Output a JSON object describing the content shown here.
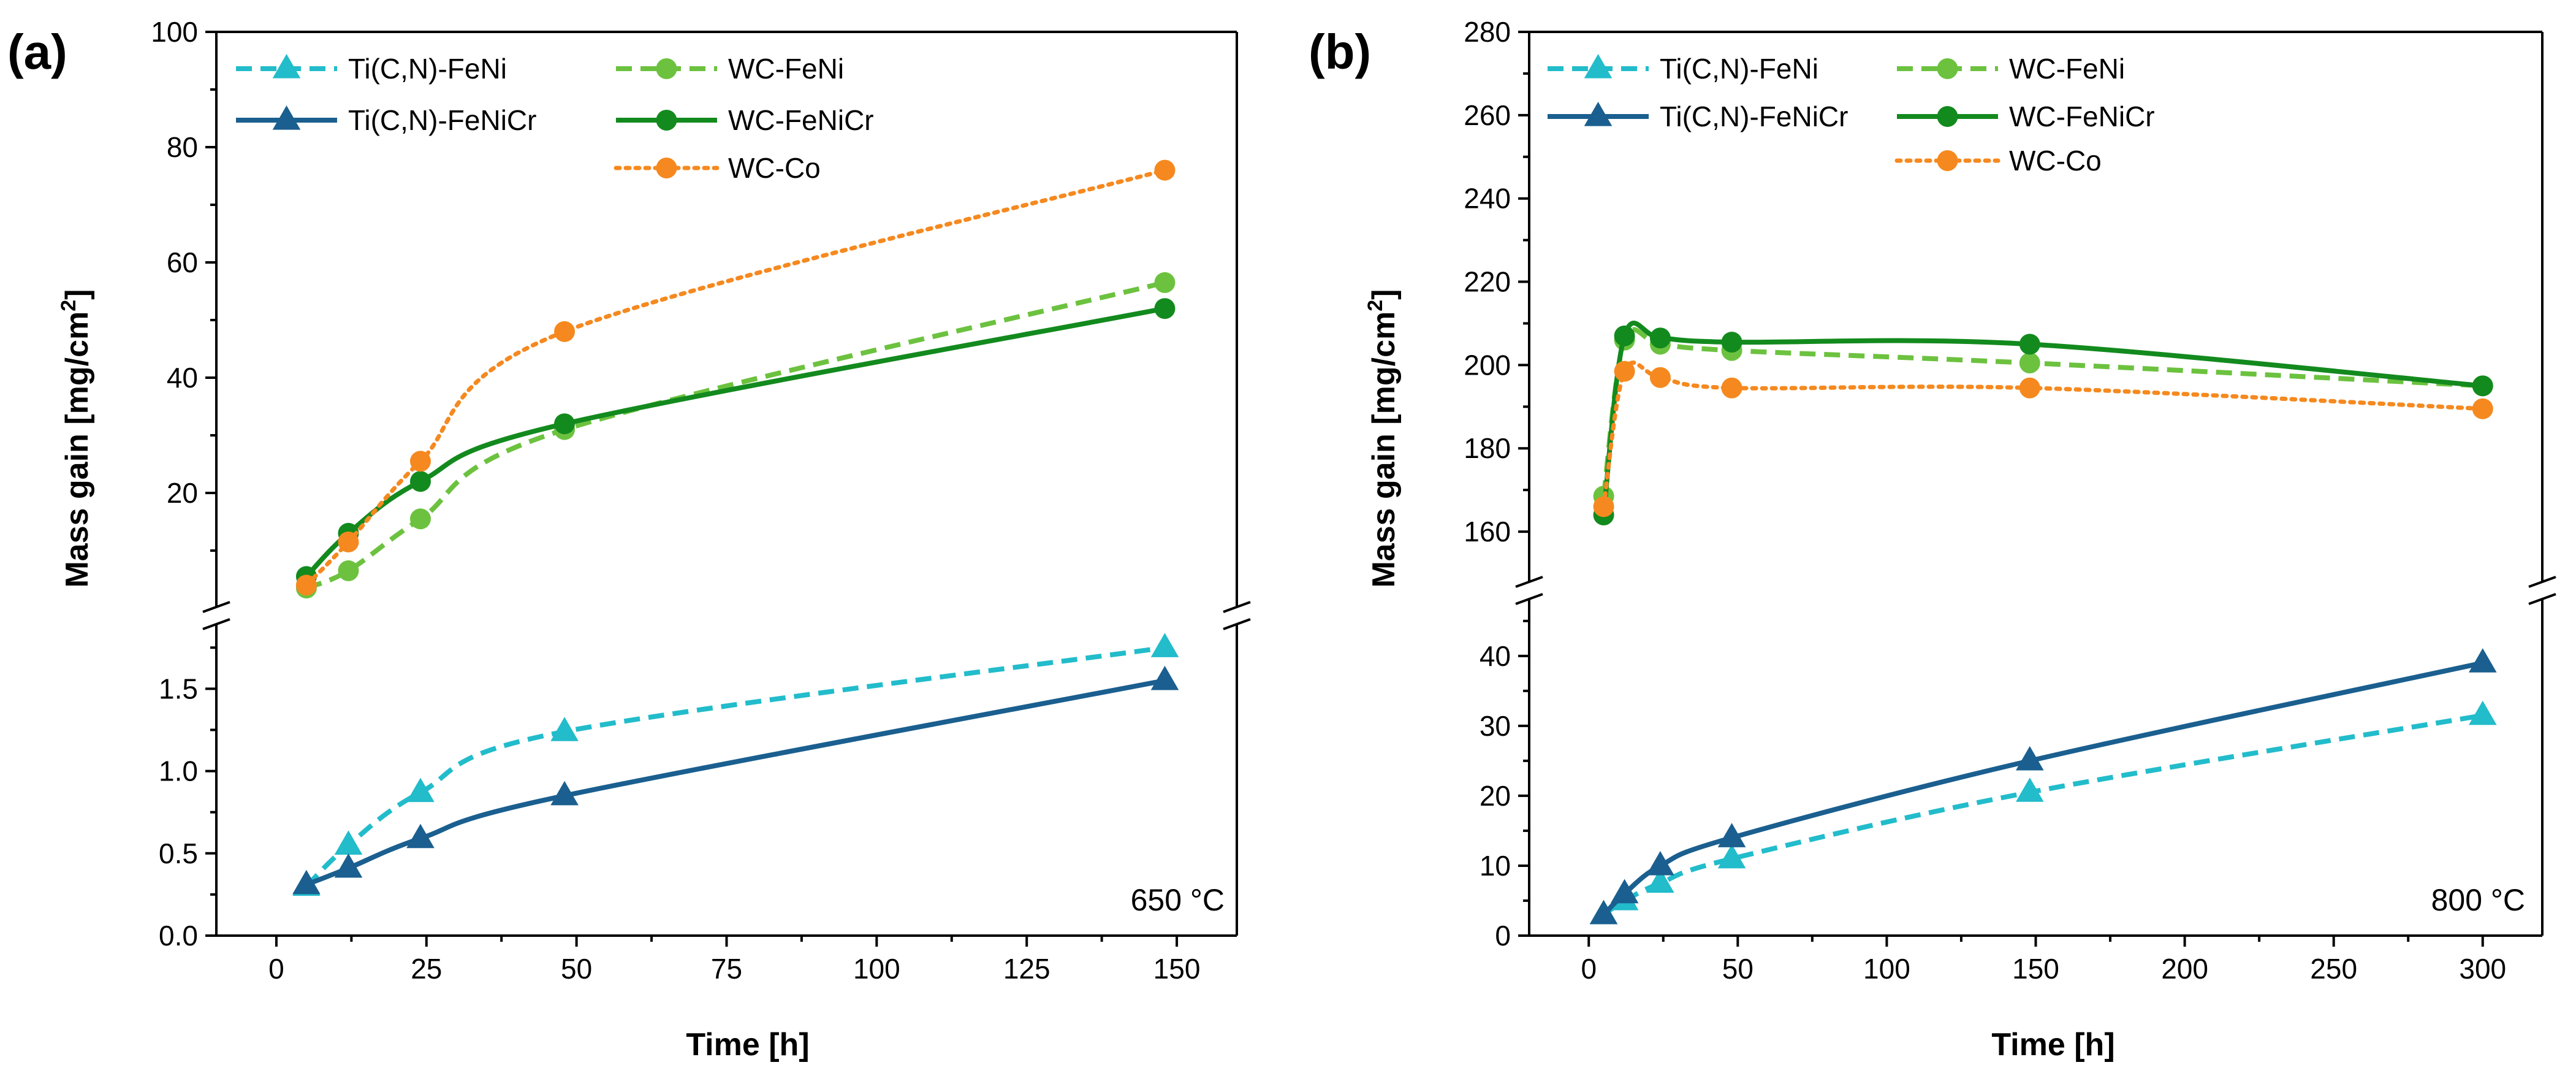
{
  "figure": {
    "panels": [
      {
        "label": "(a)",
        "temperature": "650 °C",
        "xlabel": "Time [h]",
        "ylabel": "Mass gain [mg/cm",
        "ylabel_sup": "2",
        "ylabel_end": "]",
        "x_ticks": [
          "0",
          "25",
          "50",
          "75",
          "100",
          "125",
          "150"
        ],
        "upper_y_ticks": [
          "20",
          "40",
          "60",
          "80",
          "100"
        ],
        "lower_y_ticks": [
          "0.0",
          "0.5",
          "1.0",
          "1.5"
        ]
      },
      {
        "label": "(b)",
        "temperature": "800 °C",
        "xlabel": "Time [h]",
        "ylabel": "Mass gain [mg/cm",
        "ylabel_sup": "2",
        "ylabel_end": "]",
        "x_ticks": [
          "0",
          "50",
          "100",
          "150",
          "200",
          "250",
          "300"
        ],
        "upper_y_ticks": [
          "160",
          "180",
          "200",
          "220",
          "240",
          "260",
          "280"
        ],
        "lower_y_ticks": [
          "0",
          "10",
          "20",
          "30",
          "40"
        ]
      }
    ],
    "colors": {
      "ticn_feni": "#22bccb",
      "ticn_fenicr": "#1a5f8f",
      "wc_feni": "#6cc23f",
      "wc_fenicr": "#138a1e",
      "wc_co": "#f5891f"
    }
  },
  "chart_data": [
    {
      "type": "line",
      "title": "(a) 650 °C",
      "xlabel": "Time [h]",
      "ylabel": "Mass gain [mg/cm2]",
      "xlim": [
        -10,
        160
      ],
      "ylim_upper": [
        0,
        100
      ],
      "ylim_lower": [
        0,
        1.9
      ],
      "axis_break": true,
      "series": [
        {
          "name": "Ti(C,N)-FeNi",
          "segment": "lower",
          "style": "dashed",
          "marker": "triangle",
          "color": "#22bccb",
          "x": [
            5,
            12,
            24,
            48,
            148
          ],
          "y": [
            0.3,
            0.55,
            0.87,
            1.24,
            1.75
          ]
        },
        {
          "name": "Ti(C,N)-FeNiCr",
          "segment": "lower",
          "style": "solid",
          "marker": "triangle",
          "color": "#1a5f8f",
          "x": [
            5,
            12,
            24,
            48,
            148
          ],
          "y": [
            0.31,
            0.41,
            0.59,
            0.85,
            1.55
          ]
        },
        {
          "name": "WC-FeNi",
          "segment": "upper",
          "style": "dashed",
          "marker": "circle",
          "color": "#6cc23f",
          "x": [
            5,
            12,
            24,
            48,
            148
          ],
          "y": [
            3.5,
            6.5,
            15.5,
            31.0,
            56.5
          ]
        },
        {
          "name": "WC-FeNiCr",
          "segment": "upper",
          "style": "solid",
          "marker": "circle",
          "color": "#138a1e",
          "x": [
            5,
            12,
            24,
            48,
            148
          ],
          "y": [
            5.5,
            13.0,
            22.0,
            32.0,
            52.0
          ]
        },
        {
          "name": "WC-Co",
          "segment": "upper",
          "style": "dotted",
          "marker": "circle",
          "color": "#f5891f",
          "x": [
            5,
            12,
            24,
            48,
            148
          ],
          "y": [
            4.0,
            11.5,
            25.5,
            48.0,
            76.0
          ]
        }
      ],
      "annotations": [
        "650 °C"
      ],
      "legend": "top-left"
    },
    {
      "type": "line",
      "title": "(b) 800 °C",
      "xlabel": "Time [h]",
      "ylabel": "Mass gain [mg/cm2]",
      "xlim": [
        -20,
        320
      ],
      "ylim_upper": [
        150,
        280
      ],
      "ylim_lower": [
        0,
        47
      ],
      "axis_break": true,
      "series": [
        {
          "name": "Ti(C,N)-FeNi",
          "segment": "lower",
          "style": "dashed",
          "marker": "triangle",
          "color": "#22bccb",
          "x": [
            5,
            12,
            24,
            48,
            148,
            300
          ],
          "y": [
            3.0,
            5.0,
            7.5,
            11.0,
            20.5,
            31.5
          ]
        },
        {
          "name": "Ti(C,N)-FeNiCr",
          "segment": "lower",
          "style": "solid",
          "marker": "triangle",
          "color": "#1a5f8f",
          "x": [
            5,
            12,
            24,
            48,
            148,
            300
          ],
          "y": [
            3.0,
            6.0,
            10.0,
            14.0,
            25.0,
            39.0
          ]
        },
        {
          "name": "WC-FeNi",
          "segment": "upper",
          "style": "dashed",
          "marker": "circle",
          "color": "#6cc23f",
          "x": [
            5,
            12,
            24,
            48,
            148,
            300
          ],
          "y": [
            168.5,
            206.0,
            205.0,
            203.5,
            200.5,
            195.0
          ]
        },
        {
          "name": "WC-FeNiCr",
          "segment": "upper",
          "style": "solid",
          "marker": "circle",
          "color": "#138a1e",
          "x": [
            5,
            12,
            24,
            48,
            148,
            300
          ],
          "y": [
            164.0,
            207.0,
            206.5,
            205.5,
            205.0,
            195.0
          ]
        },
        {
          "name": "WC-Co",
          "segment": "upper",
          "style": "dotted",
          "marker": "circle",
          "color": "#f5891f",
          "x": [
            5,
            12,
            24,
            48,
            148,
            300
          ],
          "y": [
            166.0,
            198.5,
            197.0,
            194.5,
            194.5,
            189.5
          ]
        }
      ],
      "annotations": [
        "800 °C"
      ],
      "legend": "top-left"
    }
  ]
}
